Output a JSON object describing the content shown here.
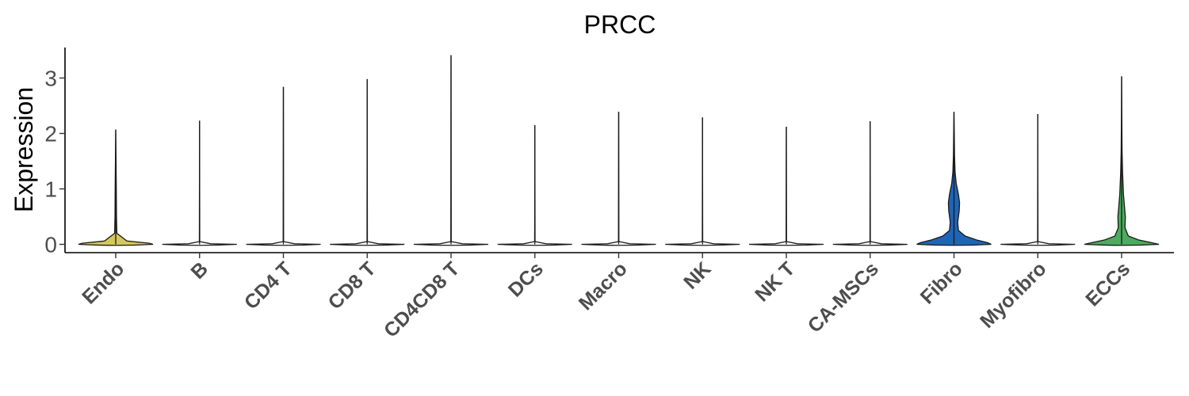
{
  "chart_data": {
    "type": "violin",
    "title": "PRCC",
    "xlabel": "",
    "ylabel": "Expression",
    "ylim": [
      -0.15,
      3.55
    ],
    "yticks": [
      0,
      1,
      2,
      3
    ],
    "grid": false,
    "legend": "none",
    "categories": [
      "Endo",
      "B",
      "CD4 T",
      "CD8 T",
      "CD4CD8 T",
      "DCs",
      "Macro",
      "NK",
      "NK T",
      "CA-MSCs",
      "Fibro",
      "Myofibro",
      "ECCs"
    ],
    "series": [
      {
        "category": "Endo",
        "max": 2.07,
        "color": "#d4c85a",
        "density": [
          [
            0,
            1.0
          ],
          [
            0.02,
            0.9
          ],
          [
            0.06,
            0.3
          ],
          [
            0.2,
            0.03
          ],
          [
            0.5,
            0.02
          ],
          [
            1.0,
            0.015
          ],
          [
            1.5,
            0.008
          ],
          [
            2.07,
            0
          ]
        ]
      },
      {
        "category": "B",
        "max": 2.23,
        "color": "#ffffff",
        "density": [
          [
            0,
            1.0
          ],
          [
            0.01,
            0.3
          ],
          [
            0.05,
            0.005
          ],
          [
            2.23,
            0
          ]
        ]
      },
      {
        "category": "CD4 T",
        "max": 2.84,
        "color": "#ffffff",
        "density": [
          [
            0,
            1.0
          ],
          [
            0.01,
            0.3
          ],
          [
            0.05,
            0.005
          ],
          [
            2.84,
            0
          ]
        ]
      },
      {
        "category": "CD8 T",
        "max": 2.98,
        "color": "#ffffff",
        "density": [
          [
            0,
            1.0
          ],
          [
            0.01,
            0.3
          ],
          [
            0.05,
            0.005
          ],
          [
            2.98,
            0
          ]
        ]
      },
      {
        "category": "CD4CD8 T",
        "max": 3.41,
        "color": "#ffffff",
        "density": [
          [
            0,
            1.0
          ],
          [
            0.01,
            0.3
          ],
          [
            0.05,
            0.005
          ],
          [
            3.41,
            0
          ]
        ]
      },
      {
        "category": "DCs",
        "max": 2.15,
        "color": "#ffffff",
        "density": [
          [
            0,
            1.0
          ],
          [
            0.01,
            0.3
          ],
          [
            0.05,
            0.005
          ],
          [
            2.15,
            0
          ]
        ]
      },
      {
        "category": "Macro",
        "max": 2.39,
        "color": "#ffffff",
        "density": [
          [
            0,
            1.0
          ],
          [
            0.01,
            0.3
          ],
          [
            0.05,
            0.005
          ],
          [
            2.39,
            0
          ]
        ]
      },
      {
        "category": "NK",
        "max": 2.29,
        "color": "#ffffff",
        "density": [
          [
            0,
            1.0
          ],
          [
            0.01,
            0.3
          ],
          [
            0.05,
            0.005
          ],
          [
            2.29,
            0
          ]
        ]
      },
      {
        "category": "NK T",
        "max": 2.12,
        "color": "#ffffff",
        "density": [
          [
            0,
            1.0
          ],
          [
            0.01,
            0.3
          ],
          [
            0.05,
            0.005
          ],
          [
            2.12,
            0
          ]
        ]
      },
      {
        "category": "CA-MSCs",
        "max": 2.22,
        "color": "#ffffff",
        "density": [
          [
            0,
            1.0
          ],
          [
            0.01,
            0.3
          ],
          [
            0.05,
            0.005
          ],
          [
            2.22,
            0
          ]
        ]
      },
      {
        "category": "Fibro",
        "max": 2.39,
        "color": "#1f65b7",
        "density": [
          [
            0,
            1.0
          ],
          [
            0.03,
            0.9
          ],
          [
            0.08,
            0.6
          ],
          [
            0.15,
            0.3
          ],
          [
            0.25,
            0.12
          ],
          [
            0.4,
            0.1
          ],
          [
            0.6,
            0.14
          ],
          [
            0.75,
            0.15
          ],
          [
            0.9,
            0.12
          ],
          [
            1.1,
            0.06
          ],
          [
            1.3,
            0.03
          ],
          [
            1.6,
            0.015
          ],
          [
            2.0,
            0.008
          ],
          [
            2.39,
            0
          ]
        ]
      },
      {
        "category": "Myofibro",
        "max": 2.35,
        "color": "#ffffff",
        "density": [
          [
            0,
            1.0
          ],
          [
            0.01,
            0.3
          ],
          [
            0.05,
            0.005
          ],
          [
            2.35,
            0
          ]
        ]
      },
      {
        "category": "ECCs",
        "max": 3.03,
        "color": "#4bab5e",
        "density": [
          [
            0,
            1.0
          ],
          [
            0.03,
            0.8
          ],
          [
            0.08,
            0.45
          ],
          [
            0.15,
            0.18
          ],
          [
            0.3,
            0.09
          ],
          [
            0.5,
            0.1
          ],
          [
            0.65,
            0.08
          ],
          [
            0.9,
            0.05
          ],
          [
            1.3,
            0.025
          ],
          [
            1.7,
            0.012
          ],
          [
            2.3,
            0.005
          ],
          [
            3.03,
            0
          ]
        ]
      }
    ]
  }
}
